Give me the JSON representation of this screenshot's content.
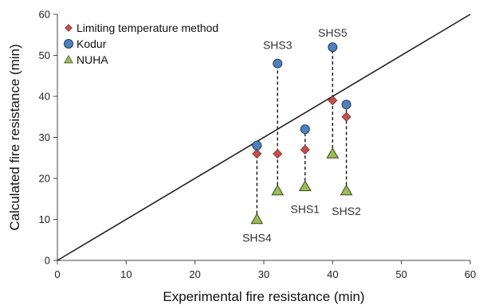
{
  "chart_data": {
    "type": "scatter",
    "title": "",
    "xlabel": "Experimental fire resistance (min)",
    "ylabel": "Calculated fire resistance (min)",
    "xlim": [
      0,
      60
    ],
    "ylim": [
      0,
      60
    ],
    "xticks": [
      0,
      10,
      20,
      30,
      40,
      50,
      60
    ],
    "yticks": [
      0,
      10,
      20,
      30,
      40,
      50,
      60
    ],
    "grid": false,
    "legend_position": "top-left",
    "reference_line": {
      "from": [
        0,
        0
      ],
      "to": [
        60,
        60
      ]
    },
    "series": [
      {
        "name": "Limiting temperature method",
        "marker": "diamond",
        "color": "#c0504d",
        "points": [
          [
            29,
            26
          ],
          [
            32,
            26
          ],
          [
            36,
            27
          ],
          [
            40,
            39
          ],
          [
            42,
            35
          ]
        ]
      },
      {
        "name": "Kodur",
        "marker": "circle",
        "color": "#4f81bd",
        "points": [
          [
            29,
            28
          ],
          [
            32,
            48
          ],
          [
            36,
            32
          ],
          [
            40,
            52
          ],
          [
            42,
            38
          ]
        ]
      },
      {
        "name": "NUHA",
        "marker": "triangle",
        "color": "#9bbb59",
        "points": [
          [
            29,
            10
          ],
          [
            32,
            17
          ],
          [
            36,
            18
          ],
          [
            40,
            26
          ],
          [
            42,
            17
          ]
        ]
      }
    ],
    "drop_lines": [
      {
        "x": 29,
        "y1": 10,
        "y2": 28
      },
      {
        "x": 32,
        "y1": 17,
        "y2": 48
      },
      {
        "x": 36,
        "y1": 18,
        "y2": 32
      },
      {
        "x": 40,
        "y1": 26,
        "y2": 52
      },
      {
        "x": 42,
        "y1": 17,
        "y2": 38
      }
    ],
    "annotations": [
      {
        "text": "SHS3",
        "x": 32,
        "y": 52.5
      },
      {
        "text": "SHS5",
        "x": 40,
        "y": 55.5
      },
      {
        "text": "SHS1",
        "x": 36,
        "y": 12.5
      },
      {
        "text": "SHS2",
        "x": 42,
        "y": 12
      },
      {
        "text": "SHS4",
        "x": 29,
        "y": 5.5
      }
    ]
  }
}
